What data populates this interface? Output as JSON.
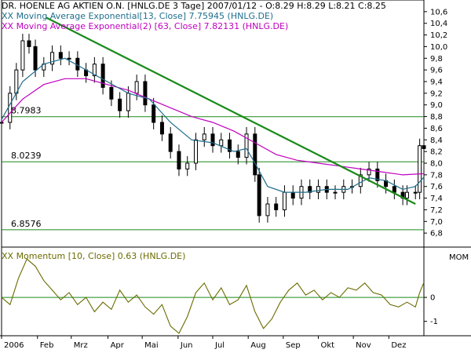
{
  "chart_data": [
    {
      "type": "candlestick",
      "title": "DR. HOENLE AG AKTIEN O.N. [HNLG.DE  3 Tage] 2007/01/12 - O:8.29 H:8.29 L:8.21 C:8.25",
      "ylim": [
        6.6,
        10.8
      ],
      "yticks": [
        "10,6",
        "10,4",
        "10,2",
        "10,0",
        "9,8",
        "9,6",
        "9,4",
        "9,2",
        "9,0",
        "8,8",
        "8,6",
        "8,4",
        "8,2",
        "8,0",
        "7,8",
        "7,6",
        "7,4",
        "7,2",
        "7,0",
        "6,8"
      ],
      "yticks_val": [
        10.6,
        10.4,
        10.2,
        10.0,
        9.8,
        9.6,
        9.4,
        9.2,
        9.0,
        8.8,
        8.6,
        8.4,
        8.2,
        8.0,
        7.8,
        7.6,
        7.4,
        7.2,
        7.0,
        6.8
      ],
      "x_labels": [
        "2006",
        "Feb",
        "Mrz",
        "Apr",
        "Mai",
        "Jun",
        "Jul",
        "Aug",
        "Sep",
        "Okt",
        "Nov",
        "Dez"
      ],
      "x_labels_t": [
        0.0,
        0.085,
        0.165,
        0.252,
        0.333,
        0.418,
        0.5,
        0.584,
        0.667,
        0.75,
        0.833,
        0.917
      ],
      "series": [
        {
          "name": "XX Moving Average Exponential[13, Close] 7.75945 (HNLG.DE)",
          "color": "#1e6e8c"
        },
        {
          "name": "XX Moving Average Exponential(2) [63, Close] 7.82131 (HNLG.DE)",
          "color": "#c000c0"
        }
      ],
      "close_points": [
        [
          0.0,
          8.7
        ],
        [
          0.02,
          9.2
        ],
        [
          0.035,
          9.6
        ],
        [
          0.05,
          10.1
        ],
        [
          0.065,
          10.0
        ],
        [
          0.08,
          9.6
        ],
        [
          0.1,
          9.7
        ],
        [
          0.12,
          9.9
        ],
        [
          0.14,
          9.8
        ],
        [
          0.16,
          9.8
        ],
        [
          0.18,
          9.6
        ],
        [
          0.2,
          9.5
        ],
        [
          0.22,
          9.7
        ],
        [
          0.24,
          9.3
        ],
        [
          0.26,
          9.1
        ],
        [
          0.28,
          8.9
        ],
        [
          0.3,
          9.2
        ],
        [
          0.32,
          9.4
        ],
        [
          0.34,
          9.0
        ],
        [
          0.36,
          8.7
        ],
        [
          0.38,
          8.5
        ],
        [
          0.4,
          8.2
        ],
        [
          0.42,
          7.9
        ],
        [
          0.44,
          8.0
        ],
        [
          0.46,
          8.4
        ],
        [
          0.48,
          8.5
        ],
        [
          0.5,
          8.3
        ],
        [
          0.52,
          8.4
        ],
        [
          0.54,
          8.2
        ],
        [
          0.56,
          8.1
        ],
        [
          0.58,
          8.5
        ],
        [
          0.6,
          7.8
        ],
        [
          0.61,
          7.1
        ],
        [
          0.63,
          7.3
        ],
        [
          0.65,
          7.2
        ],
        [
          0.67,
          7.5
        ],
        [
          0.69,
          7.4
        ],
        [
          0.71,
          7.6
        ],
        [
          0.73,
          7.5
        ],
        [
          0.75,
          7.6
        ],
        [
          0.77,
          7.5
        ],
        [
          0.79,
          7.5
        ],
        [
          0.81,
          7.6
        ],
        [
          0.83,
          7.6
        ],
        [
          0.85,
          7.8
        ],
        [
          0.87,
          7.9
        ],
        [
          0.89,
          7.7
        ],
        [
          0.91,
          7.6
        ],
        [
          0.93,
          7.5
        ],
        [
          0.95,
          7.4
        ],
        [
          0.96,
          7.5
        ],
        [
          0.98,
          7.5
        ],
        [
          0.99,
          8.3
        ],
        [
          1.0,
          8.25
        ]
      ],
      "ema13_points": [
        [
          0.0,
          8.75
        ],
        [
          0.05,
          9.4
        ],
        [
          0.1,
          9.7
        ],
        [
          0.15,
          9.8
        ],
        [
          0.2,
          9.6
        ],
        [
          0.25,
          9.4
        ],
        [
          0.3,
          9.2
        ],
        [
          0.35,
          9.1
        ],
        [
          0.4,
          8.7
        ],
        [
          0.45,
          8.4
        ],
        [
          0.5,
          8.35
        ],
        [
          0.55,
          8.2
        ],
        [
          0.58,
          8.25
        ],
        [
          0.6,
          8.0
        ],
        [
          0.63,
          7.6
        ],
        [
          0.67,
          7.5
        ],
        [
          0.72,
          7.5
        ],
        [
          0.77,
          7.55
        ],
        [
          0.82,
          7.55
        ],
        [
          0.87,
          7.75
        ],
        [
          0.91,
          7.7
        ],
        [
          0.95,
          7.55
        ],
        [
          0.98,
          7.6
        ],
        [
          1.0,
          7.76
        ]
      ],
      "ema63_points": [
        [
          0.0,
          8.7
        ],
        [
          0.05,
          9.1
        ],
        [
          0.1,
          9.35
        ],
        [
          0.15,
          9.45
        ],
        [
          0.2,
          9.45
        ],
        [
          0.25,
          9.35
        ],
        [
          0.3,
          9.25
        ],
        [
          0.35,
          9.1
        ],
        [
          0.4,
          8.95
        ],
        [
          0.45,
          8.8
        ],
        [
          0.5,
          8.7
        ],
        [
          0.55,
          8.55
        ],
        [
          0.6,
          8.35
        ],
        [
          0.65,
          8.15
        ],
        [
          0.7,
          8.05
        ],
        [
          0.75,
          8.0
        ],
        [
          0.8,
          7.95
        ],
        [
          0.85,
          7.9
        ],
        [
          0.9,
          7.85
        ],
        [
          0.95,
          7.8
        ],
        [
          1.0,
          7.82
        ]
      ],
      "trendline": [
        [
          0.105,
          10.5
        ],
        [
          0.98,
          7.3
        ]
      ],
      "hlines": [
        {
          "value": 8.7983,
          "label": "8.7983"
        },
        {
          "value": 8.0239,
          "label": "8.0239"
        },
        {
          "value": 6.8576,
          "label": "6.8576"
        }
      ]
    },
    {
      "type": "line",
      "title": "XX Momentum [10, Close] 0.63 (HNLG.DE)",
      "ylabel": "MOM",
      "ylim": [
        -1.6,
        2.0
      ],
      "yticks": [
        "0",
        "-1"
      ],
      "yticks_val": [
        0,
        -1
      ],
      "series": [
        {
          "name": "XX Momentum [10, Close] 0.63 (HNLG.DE)",
          "color": "#6b6b00"
        }
      ],
      "points": [
        [
          0.0,
          0.0
        ],
        [
          0.02,
          -0.3
        ],
        [
          0.04,
          0.8
        ],
        [
          0.06,
          1.6
        ],
        [
          0.08,
          1.3
        ],
        [
          0.1,
          0.7
        ],
        [
          0.12,
          0.3
        ],
        [
          0.14,
          -0.1
        ],
        [
          0.16,
          0.2
        ],
        [
          0.18,
          -0.3
        ],
        [
          0.2,
          0.0
        ],
        [
          0.22,
          -0.6
        ],
        [
          0.24,
          -0.2
        ],
        [
          0.26,
          -0.5
        ],
        [
          0.28,
          0.3
        ],
        [
          0.3,
          -0.2
        ],
        [
          0.32,
          0.1
        ],
        [
          0.34,
          -0.4
        ],
        [
          0.36,
          -0.7
        ],
        [
          0.38,
          -0.3
        ],
        [
          0.4,
          -1.2
        ],
        [
          0.42,
          -1.5
        ],
        [
          0.44,
          -0.8
        ],
        [
          0.46,
          0.2
        ],
        [
          0.48,
          0.6
        ],
        [
          0.5,
          -0.1
        ],
        [
          0.52,
          0.4
        ],
        [
          0.54,
          -0.3
        ],
        [
          0.56,
          -0.1
        ],
        [
          0.58,
          0.5
        ],
        [
          0.6,
          -0.6
        ],
        [
          0.62,
          -1.3
        ],
        [
          0.64,
          -0.9
        ],
        [
          0.66,
          -0.2
        ],
        [
          0.68,
          0.3
        ],
        [
          0.7,
          0.6
        ],
        [
          0.72,
          0.1
        ],
        [
          0.74,
          0.3
        ],
        [
          0.76,
          -0.1
        ],
        [
          0.78,
          0.2
        ],
        [
          0.8,
          0.0
        ],
        [
          0.82,
          0.4
        ],
        [
          0.84,
          0.3
        ],
        [
          0.86,
          0.6
        ],
        [
          0.88,
          0.2
        ],
        [
          0.9,
          0.1
        ],
        [
          0.92,
          -0.3
        ],
        [
          0.94,
          -0.4
        ],
        [
          0.96,
          -0.2
        ],
        [
          0.98,
          -0.4
        ],
        [
          0.99,
          0.2
        ],
        [
          1.0,
          0.63
        ]
      ]
    }
  ]
}
